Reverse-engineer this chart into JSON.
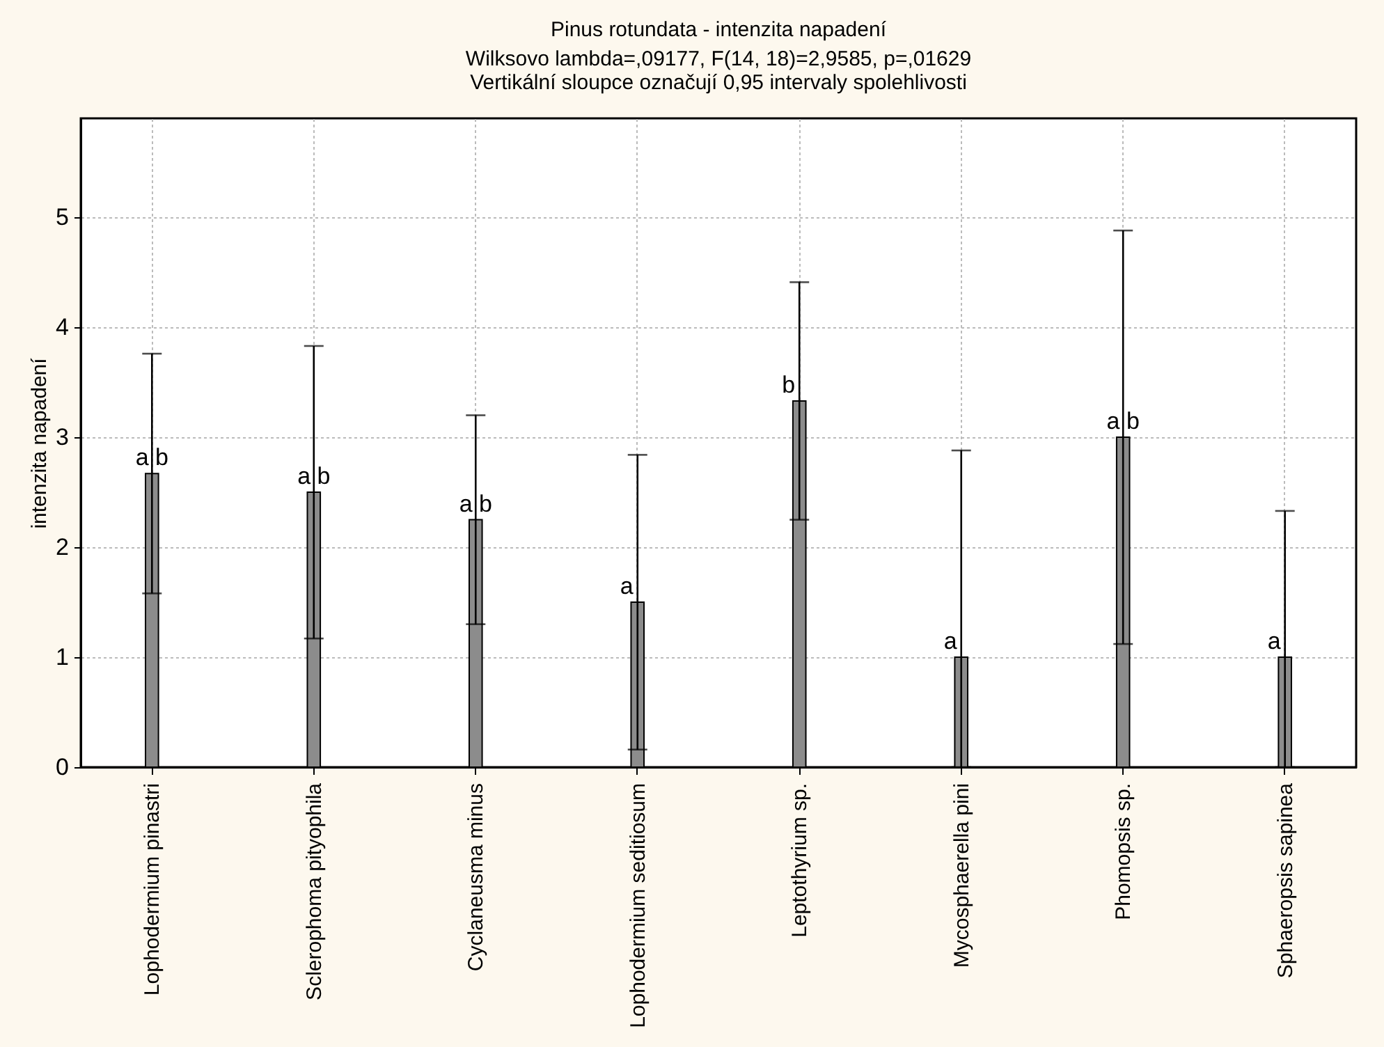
{
  "chart_data": {
    "type": "bar",
    "title": "Pinus rotundata - intenzita napadení",
    "subtitle": [
      "Wilksovo lambda=,09177, F(14, 18)=2,9585, p=,01629",
      "Vertikální sloupce označují 0,95 intervaly spolehlivosti"
    ],
    "ylabel": "intenzita napadení",
    "categories": [
      "Lophodermium pinastri",
      "Sclerophoma pityophila",
      "Cyclaneusma minus",
      "Lophodermium seditiosum",
      "Leptothyrium sp.",
      "Mycosphaerella pini",
      "Phomopsis sp.",
      "Sphaeropsis sapinea"
    ],
    "values": [
      2.67,
      2.5,
      2.25,
      1.5,
      3.33,
      1.0,
      3.0,
      1.0
    ],
    "errors": [
      [
        1.58,
        3.76
      ],
      [
        1.17,
        3.83
      ],
      [
        1.3,
        3.2
      ],
      [
        0.16,
        2.84
      ],
      [
        2.25,
        4.41
      ],
      [
        0,
        2.88
      ],
      [
        1.12,
        4.88
      ],
      [
        0,
        2.33
      ]
    ],
    "color": "#8c8c8c",
    "ylim": [
      0,
      5.9
    ],
    "yticks": [
      0,
      1,
      2,
      3,
      4,
      5
    ],
    "grid": true,
    "annotations": [
      {
        "text": "a b",
        "x": "Lophodermium pinastri",
        "y": 2.67
      },
      {
        "text": "a b",
        "x": "Sclerophoma pityophila",
        "y": 2.5
      },
      {
        "text": "a b",
        "x": "Cyclaneusma minus",
        "y": 2.25
      },
      {
        "text": "a",
        "x": "Lophodermium seditiosum",
        "y": 1.5
      },
      {
        "text": "b",
        "x": "Leptothyrium sp.",
        "y": 3.33
      },
      {
        "text": "a",
        "x": "Mycosphaerella pini",
        "y": 1.0
      },
      {
        "text": "a b",
        "x": "Phomopsis sp.",
        "y": 3.0
      },
      {
        "text": "a",
        "x": "Sphaeropsis sapinea",
        "y": 1.0
      }
    ]
  }
}
